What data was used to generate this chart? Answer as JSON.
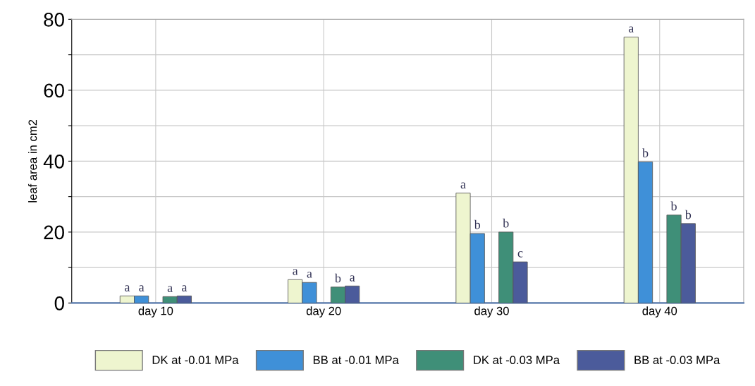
{
  "chart_data": {
    "type": "bar",
    "ylabel": "leaf area in cm2",
    "categories": [
      "day 10",
      "day 20",
      "day 30",
      "day 40"
    ],
    "series": [
      {
        "name": "DK at -0.01 MPa",
        "color": "#eef5cf",
        "values": [
          2,
          6.6,
          31,
          75
        ],
        "value_labels": [
          "a",
          "a",
          "a",
          "a"
        ]
      },
      {
        "name": "BB at -0.01 MPa",
        "color": "#3f90d8",
        "values": [
          2,
          5.8,
          19.6,
          39.8
        ],
        "value_labels": [
          "a",
          "a",
          "b",
          "b"
        ]
      },
      {
        "name": "DK at -0.03 MPa",
        "color": "#3f8f78",
        "values": [
          1.8,
          4.5,
          20,
          24.8
        ],
        "value_labels": [
          "a",
          "b",
          "b",
          "b"
        ]
      },
      {
        "name": "BB at -0.03 MPa",
        "color": "#4b5b9b",
        "values": [
          2,
          4.8,
          11.6,
          22.4
        ],
        "value_labels": [
          "a",
          "a",
          "c",
          "b"
        ]
      }
    ],
    "ylim": [
      0,
      80
    ],
    "yticks": [
      0,
      {
        "value": 10,
        "label": null
      },
      20,
      {
        "value": 30,
        "label": null
      },
      40,
      {
        "value": 50,
        "label": null
      },
      60,
      {
        "value": 70,
        "label": null
      },
      80
    ],
    "grid": true,
    "legend": "bottom"
  }
}
